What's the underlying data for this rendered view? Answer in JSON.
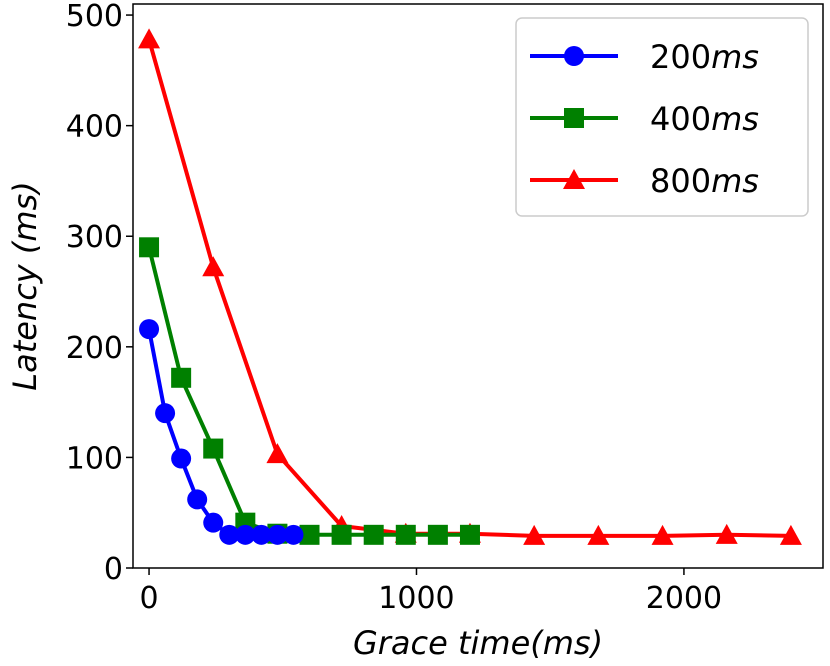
{
  "chart_data": {
    "type": "line",
    "xlabel": "Grace time(ms)",
    "ylabel": "Latency (ms)",
    "xlim": [
      -60,
      2520
    ],
    "ylim": [
      0,
      510
    ],
    "xticks": [
      0,
      1000,
      2000
    ],
    "xtick_labels": [
      "0",
      "1000",
      "2000"
    ],
    "yticks": [
      0,
      100,
      200,
      300,
      400,
      500
    ],
    "ytick_labels": [
      "0",
      "100",
      "200",
      "300",
      "400",
      "500"
    ],
    "grid": false,
    "legend_position": "top-right",
    "series": [
      {
        "name": "200ms",
        "legend_label": "200ms",
        "marker": "circle",
        "color": "#0000ff",
        "x": [
          0,
          60,
          120,
          180,
          240,
          300,
          360,
          420,
          480,
          540
        ],
        "y": [
          216,
          140,
          99,
          62,
          41,
          30,
          30,
          30,
          30,
          30
        ]
      },
      {
        "name": "400ms",
        "legend_label": "400ms",
        "marker": "square",
        "color": "#008000",
        "x": [
          0,
          120,
          240,
          360,
          480,
          600,
          720,
          840,
          960,
          1080,
          1200
        ],
        "y": [
          290,
          172,
          108,
          41,
          31,
          30,
          30,
          30,
          30,
          30,
          30
        ]
      },
      {
        "name": "800ms",
        "legend_label": "800ms",
        "marker": "triangle",
        "color": "#ff0000",
        "x": [
          0,
          240,
          480,
          720,
          960,
          1200,
          1440,
          1680,
          1920,
          2160,
          2400
        ],
        "y": [
          478,
          272,
          103,
          38,
          31,
          31,
          29,
          29,
          29,
          30,
          29
        ]
      }
    ]
  }
}
